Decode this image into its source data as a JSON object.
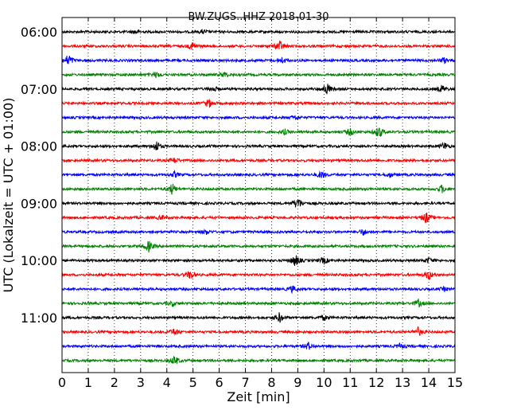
{
  "chart_data": {
    "type": "line",
    "title": "BW.ZUGS..HHZ 2018-01-30",
    "xlabel": "Zeit  [min]",
    "ylabel": "UTC (Lokalzeit = UTC + 01:00)",
    "xlim": [
      0,
      15
    ],
    "x_ticks": [
      "0",
      "1",
      "2",
      "3",
      "4",
      "5",
      "6",
      "7",
      "8",
      "9",
      "10",
      "11",
      "12",
      "13",
      "14",
      "15"
    ],
    "y_tick_labels": [
      "06:00",
      "07:00",
      "08:00",
      "09:00",
      "10:00",
      "11:00"
    ],
    "grid": "vertical dotted",
    "trace_interval_min": 15,
    "color_cycle": [
      "#000000",
      "#ff0000",
      "#0000ff",
      "#008000"
    ],
    "series": [
      {
        "start": "06:00",
        "events": [
          [
            2.8,
            0.35
          ],
          [
            5.4,
            0.3
          ]
        ]
      },
      {
        "start": "06:15",
        "events": [
          [
            5.0,
            0.7
          ],
          [
            8.3,
            0.9
          ]
        ]
      },
      {
        "start": "06:30",
        "events": [
          [
            0.25,
            1.0
          ],
          [
            8.4,
            0.45
          ],
          [
            14.6,
            0.4
          ]
        ]
      },
      {
        "start": "06:45",
        "events": [
          [
            3.6,
            0.45
          ],
          [
            6.2,
            0.4
          ]
        ]
      },
      {
        "start": "07:00",
        "events": [
          [
            5.8,
            0.4
          ],
          [
            10.1,
            1.0
          ],
          [
            14.5,
            0.6
          ]
        ]
      },
      {
        "start": "07:15",
        "events": [
          [
            5.6,
            0.7
          ]
        ]
      },
      {
        "start": "07:30",
        "events": [
          [
            8.9,
            0.35
          ]
        ]
      },
      {
        "start": "07:45",
        "events": [
          [
            8.5,
            0.4
          ],
          [
            11.0,
            0.55
          ],
          [
            12.1,
            1.0
          ]
        ]
      },
      {
        "start": "08:00",
        "events": [
          [
            3.6,
            0.9
          ],
          [
            14.6,
            0.6
          ]
        ]
      },
      {
        "start": "08:15",
        "events": [
          [
            4.3,
            0.45
          ]
        ]
      },
      {
        "start": "08:30",
        "events": [
          [
            4.3,
            0.45
          ],
          [
            9.9,
            0.6
          ],
          [
            12.5,
            0.4
          ]
        ]
      },
      {
        "start": "08:45",
        "events": [
          [
            4.2,
            0.9
          ],
          [
            14.5,
            0.6
          ]
        ]
      },
      {
        "start": "09:00",
        "events": [
          [
            9.0,
            1.0
          ]
        ]
      },
      {
        "start": "09:15",
        "events": [
          [
            3.8,
            0.35
          ],
          [
            13.9,
            0.9
          ]
        ]
      },
      {
        "start": "09:30",
        "events": [
          [
            5.5,
            0.35
          ],
          [
            11.5,
            0.5
          ]
        ]
      },
      {
        "start": "09:45",
        "events": [
          [
            3.3,
            0.9
          ]
        ]
      },
      {
        "start": "10:00",
        "events": [
          [
            8.9,
            1.0
          ],
          [
            10.0,
            0.5
          ],
          [
            14.0,
            0.45
          ]
        ]
      },
      {
        "start": "10:15",
        "events": [
          [
            4.9,
            0.7
          ],
          [
            14.0,
            0.8
          ]
        ]
      },
      {
        "start": "10:30",
        "events": [
          [
            8.8,
            0.5
          ],
          [
            14.6,
            0.3
          ]
        ]
      },
      {
        "start": "10:45",
        "events": [
          [
            4.2,
            0.35
          ],
          [
            13.6,
            0.6
          ]
        ]
      },
      {
        "start": "11:00",
        "events": [
          [
            8.3,
            0.8
          ],
          [
            10.0,
            0.4
          ]
        ]
      },
      {
        "start": "11:15",
        "events": [
          [
            4.3,
            0.6
          ],
          [
            13.6,
            0.7
          ]
        ]
      },
      {
        "start": "11:30",
        "events": [
          [
            9.4,
            0.6
          ],
          [
            12.9,
            0.4
          ]
        ]
      },
      {
        "start": "11:45",
        "events": [
          [
            4.3,
            0.75
          ]
        ]
      }
    ]
  }
}
